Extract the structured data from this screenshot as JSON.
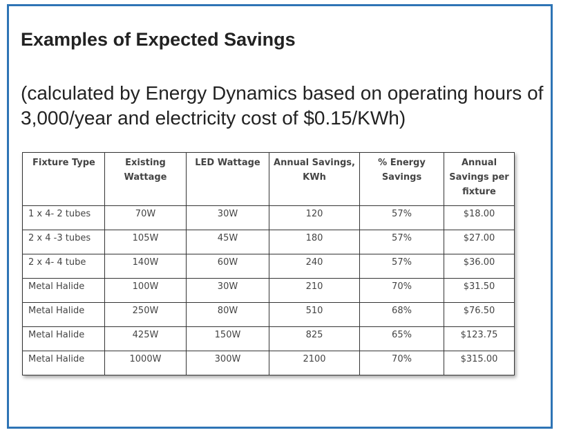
{
  "title": "Examples of Expected Savings",
  "subtitle": "(calculated by Energy Dynamics based on operating hours of 3,000/year and electricity cost of $0.15/KWh)",
  "table": {
    "headers": [
      "Fixture Type",
      "Existing Wattage",
      "LED Wattage",
      "Annual Savings, KWh",
      "% Energy Savings",
      "Annual Savings per fixture"
    ],
    "rows": [
      [
        "1 x 4- 2 tubes",
        "70W",
        "30W",
        "120",
        "57%",
        "$18.00"
      ],
      [
        "2 x 4 -3 tubes",
        "105W",
        "45W",
        "180",
        "57%",
        "$27.00"
      ],
      [
        "2 x 4- 4 tube",
        "140W",
        "60W",
        "240",
        "57%",
        "$36.00"
      ],
      [
        "Metal Halide",
        "100W",
        "30W",
        "210",
        "70%",
        "$31.50"
      ],
      [
        "Metal Halide",
        "250W",
        "80W",
        "510",
        "68%",
        "$76.50"
      ],
      [
        "Metal Halide",
        "425W",
        "150W",
        "825",
        "65%",
        "$123.75"
      ],
      [
        "Metal Halide",
        "1000W",
        "300W",
        "2100",
        "70%",
        "$315.00"
      ]
    ]
  },
  "colors": {
    "frame_border": "#2e74b5",
    "text": "#222222"
  }
}
